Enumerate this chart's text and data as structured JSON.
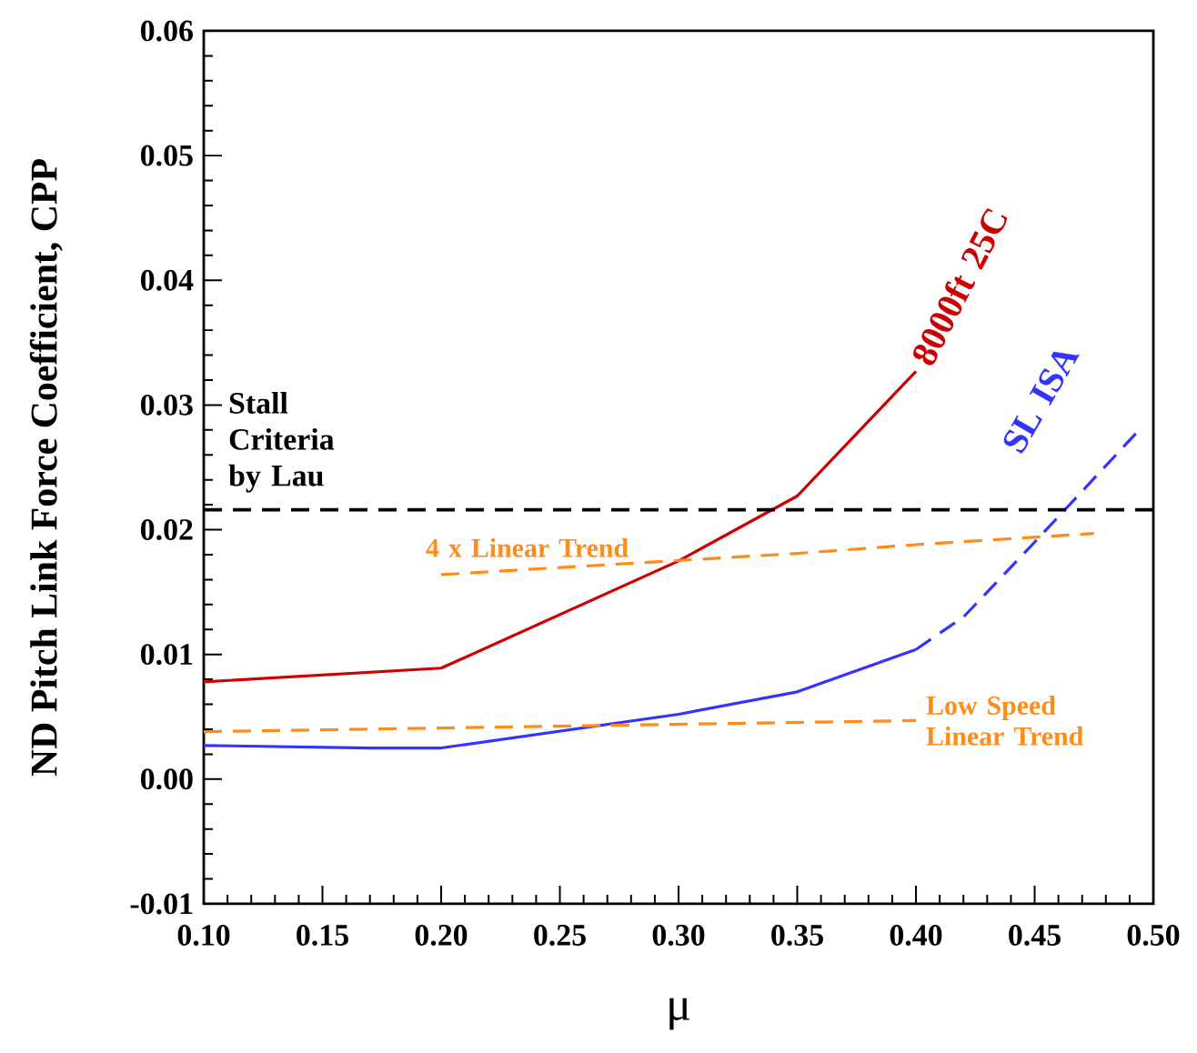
{
  "chart_data": {
    "type": "line",
    "xlabel": "μ",
    "ylabel": "ND Pitch Link Force Coefficient, CPP",
    "xlim": [
      0.1,
      0.5
    ],
    "ylim": [
      -0.01,
      0.06
    ],
    "xticks": [
      {
        "value": 0.1,
        "label": "0.10"
      },
      {
        "value": 0.15,
        "label": "0.15"
      },
      {
        "value": 0.2,
        "label": "0.20"
      },
      {
        "value": 0.25,
        "label": "0.25"
      },
      {
        "value": 0.3,
        "label": "0.30"
      },
      {
        "value": 0.35,
        "label": "0.35"
      },
      {
        "value": 0.4,
        "label": "0.40"
      },
      {
        "value": 0.45,
        "label": "0.45"
      },
      {
        "value": 0.5,
        "label": "0.50"
      }
    ],
    "yticks": [
      {
        "value": -0.01,
        "label": "-0.01"
      },
      {
        "value": 0,
        "label": "0.00"
      },
      {
        "value": 0.01,
        "label": "0.01"
      },
      {
        "value": 0.02,
        "label": "0.02"
      },
      {
        "value": 0.03,
        "label": "0.03"
      },
      {
        "value": 0.04,
        "label": "0.04"
      },
      {
        "value": 0.05,
        "label": "0.05"
      },
      {
        "value": 0.06,
        "label": "0.06"
      }
    ],
    "grid": false,
    "marker": "none",
    "series": [
      {
        "name": "8000ft 25C",
        "color": "#cc0000",
        "line_style": "solid",
        "x": [
          0.1,
          0.2,
          0.3,
          0.35,
          0.4
        ],
        "values": [
          0.0078,
          0.0089,
          0.0175,
          0.0227,
          0.0327
        ]
      },
      {
        "name": "SL ISA",
        "color": "#3333ff",
        "line_style": "solid",
        "x": [
          0.1,
          0.17,
          0.2,
          0.3,
          0.35,
          0.4
        ],
        "values": [
          0.0027,
          0.0025,
          0.0025,
          0.0052,
          0.007,
          0.0104
        ]
      },
      {
        "color": "#3333ff",
        "line_style": "dashed",
        "x": [
          0.4,
          0.42,
          0.45,
          0.495
        ],
        "values": [
          0.0104,
          0.013,
          0.019,
          0.0282
        ]
      },
      {
        "name": "4 x Linear Trend",
        "color": "#ff8c1a",
        "line_style": "dashed",
        "x": [
          0.2,
          0.35,
          0.4,
          0.475
        ],
        "values": [
          0.0164,
          0.0181,
          0.0188,
          0.0197
        ]
      },
      {
        "name": "Low Speed Linear Trend",
        "color": "#ff8c1a",
        "line_style": "dashed",
        "x": [
          0.1,
          0.4
        ],
        "values": [
          0.0038,
          0.0047
        ]
      }
    ],
    "ref_lines": [
      {
        "axis": "y",
        "value": 0.0216,
        "label": "Stall Criteria by Lau",
        "color": "#000000",
        "line_style": "dashed"
      }
    ]
  }
}
